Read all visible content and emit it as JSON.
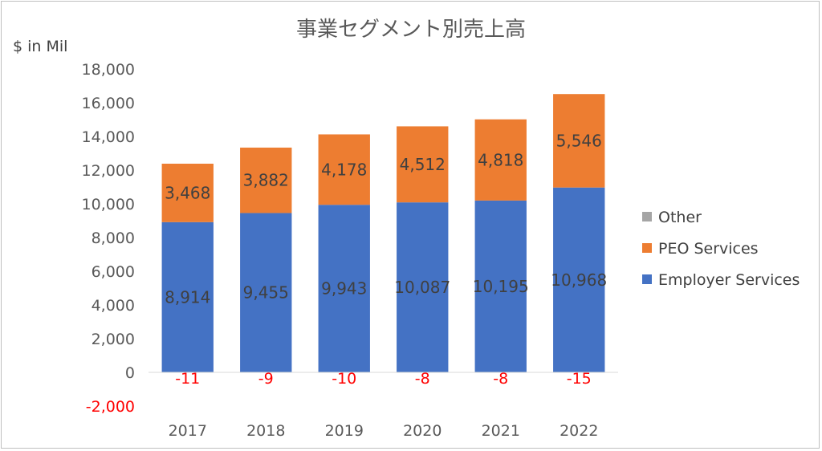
{
  "chart_data": {
    "type": "bar",
    "stacked": true,
    "title": "事業セグメント別売上高",
    "ylabel": "$ in Mil",
    "categories": [
      "2017",
      "2018",
      "2019",
      "2020",
      "2021",
      "2022"
    ],
    "series": [
      {
        "name": "Employer Services",
        "color": "#4472c4",
        "values": [
          8914,
          9455,
          9943,
          10087,
          10195,
          10968
        ],
        "labels": [
          "8,914",
          "9,455",
          "9,943",
          "10,087",
          "10,195",
          "10,968"
        ]
      },
      {
        "name": "PEO Services",
        "color": "#ed7d31",
        "values": [
          3468,
          3882,
          4178,
          4512,
          4818,
          5546
        ],
        "labels": [
          "3,468",
          "3,882",
          "4,178",
          "4,512",
          "4,818",
          "5,546"
        ]
      },
      {
        "name": "Other",
        "color": "#a5a5a5",
        "values": [
          -11,
          -9,
          -10,
          -8,
          -8,
          -15
        ],
        "labels": [
          "-11",
          "-9",
          "-10",
          "-8",
          "-8",
          "-15"
        ],
        "label_color": "#ff0000"
      }
    ],
    "ylim": [
      -2000,
      18000
    ],
    "yticks": [
      -2000,
      0,
      2000,
      4000,
      6000,
      8000,
      10000,
      12000,
      14000,
      16000,
      18000
    ],
    "ytick_labels": [
      "-2,000",
      "0",
      "2,000",
      "4,000",
      "6,000",
      "8,000",
      "10,000",
      "12,000",
      "14,000",
      "16,000",
      "18,000"
    ],
    "negative_tick_color": "#ff0000",
    "legend_order": [
      "Other",
      "PEO Services",
      "Employer Services"
    ],
    "legend_position": "right",
    "grid": false
  }
}
